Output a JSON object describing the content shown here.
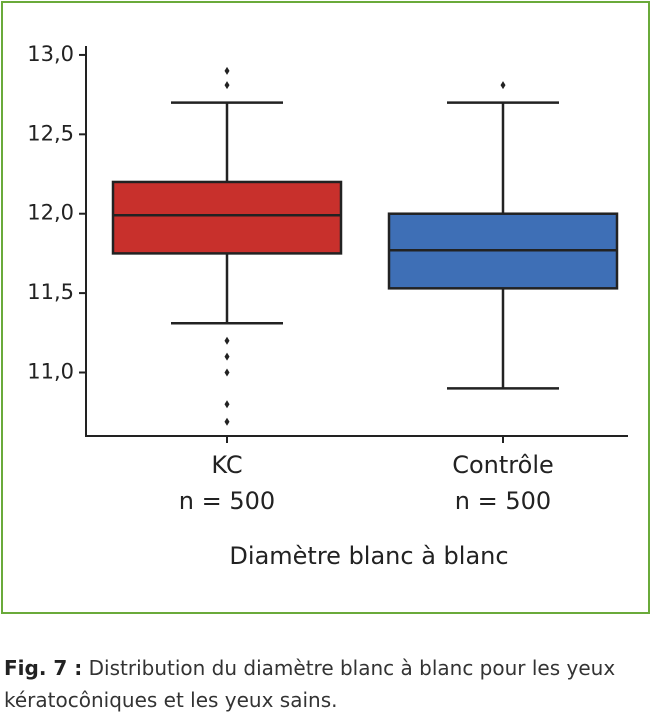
{
  "chart_data": {
    "type": "box",
    "xlabel": "Diamètre blanc à blanc",
    "ylim": [
      10.6,
      13.05
    ],
    "yticks": [
      {
        "value": 11,
        "label": "11,0"
      },
      {
        "value": 11.5,
        "label": "11,5"
      },
      {
        "value": 12,
        "label": "12,0"
      },
      {
        "value": 12.5,
        "label": "12,5"
      },
      {
        "value": 13,
        "label": "13,0"
      }
    ],
    "series": [
      {
        "name": "KC",
        "sublabel": "n = 500",
        "color": "#c8302c",
        "whisker_low": 11.31,
        "q1": 11.75,
        "median": 11.99,
        "q3": 12.2,
        "whisker_high": 12.7,
        "outliers": [
          12.9,
          12.81,
          11.2,
          11.1,
          11.0,
          10.8,
          10.69
        ]
      },
      {
        "name": "Contrôle",
        "sublabel": "n = 500",
        "color": "#3e6fb6",
        "whisker_low": 10.9,
        "q1": 11.53,
        "median": 11.77,
        "q3": 12.0,
        "whisker_high": 12.7,
        "outliers": [
          12.81
        ]
      }
    ]
  },
  "caption": {
    "label": "Fig. 7 :",
    "text": "Distribution du diamètre blanc à blanc pour les yeux kératocôniques et les yeux sains."
  }
}
